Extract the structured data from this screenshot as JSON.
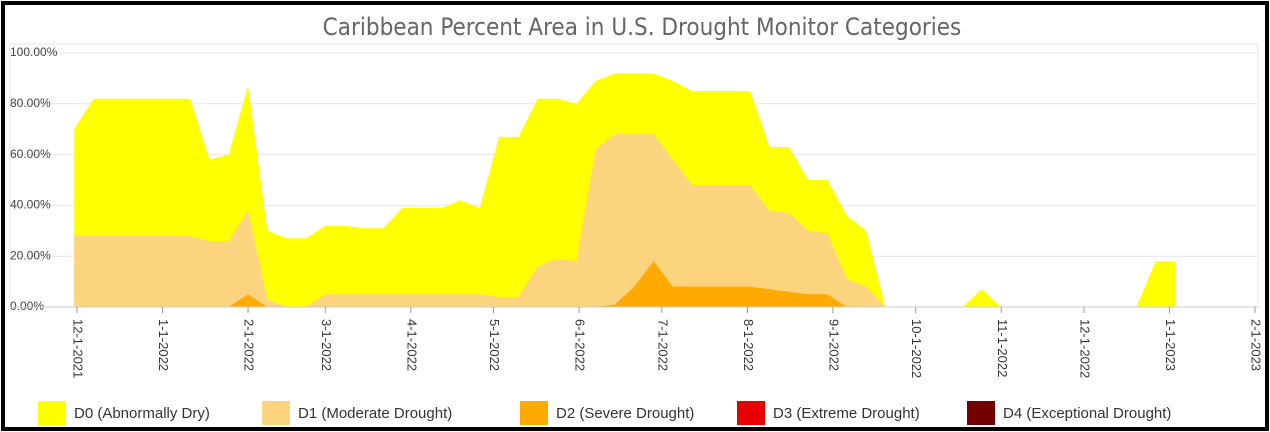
{
  "chart_data": {
    "type": "area",
    "title": "Caribbean Percent Area in U.S. Drought Monitor Categories",
    "x": [
      "11-30-2021",
      "12-7-2021",
      "12-14-2021",
      "12-21-2021",
      "12-28-2021",
      "1-4-2022",
      "1-11-2022",
      "1-18-2022",
      "1-25-2022",
      "2-1-2022",
      "2-8-2022",
      "2-15-2022",
      "2-22-2022",
      "3-1-2022",
      "3-8-2022",
      "3-15-2022",
      "3-22-2022",
      "3-29-2022",
      "4-5-2022",
      "4-12-2022",
      "4-19-2022",
      "4-26-2022",
      "5-3-2022",
      "5-10-2022",
      "5-17-2022",
      "5-24-2022",
      "5-31-2022",
      "6-7-2022",
      "6-14-2022",
      "6-21-2022",
      "6-28-2022",
      "7-5-2022",
      "7-12-2022",
      "7-19-2022",
      "7-26-2022",
      "8-2-2022",
      "8-9-2022",
      "8-16-2022",
      "8-23-2022",
      "8-30-2022",
      "9-6-2022",
      "9-13-2022",
      "9-20-2022",
      "9-27-2022",
      "10-4-2022",
      "10-11-2022",
      "10-18-2022",
      "10-25-2022",
      "11-1-2022",
      "11-8-2022",
      "11-15-2022",
      "11-22-2022",
      "11-29-2022",
      "12-6-2022",
      "12-13-2022",
      "12-20-2022",
      "12-27-2022",
      "1-3-2023"
    ],
    "series": [
      {
        "name": "D0 (Abnormally Dry)",
        "color": "#ffff00",
        "values": [
          70,
          82,
          82,
          82,
          82,
          82,
          82,
          58,
          60,
          87,
          30,
          27,
          27,
          32,
          32,
          31,
          31,
          39,
          39,
          39,
          42,
          39,
          67,
          67,
          82,
          82,
          80,
          89,
          92,
          92,
          92,
          89,
          85,
          85,
          85,
          85,
          63,
          63,
          50,
          50,
          36,
          30,
          0,
          0,
          0,
          0,
          0,
          7,
          0,
          0,
          0,
          0,
          0,
          0,
          0,
          0,
          18,
          18
        ]
      },
      {
        "name": "D1 (Moderate Drought)",
        "color": "#fcd37f",
        "values": [
          28,
          28,
          28,
          28,
          28,
          28,
          28,
          26,
          26,
          38,
          3,
          0,
          0,
          5,
          5,
          5,
          5,
          5,
          5,
          5,
          5,
          5,
          4,
          4,
          16,
          19,
          18,
          62,
          68,
          68,
          68,
          58,
          48,
          48,
          48,
          48,
          38,
          37,
          30,
          29,
          11,
          8,
          0,
          0,
          0,
          0,
          0,
          0,
          0,
          0,
          0,
          0,
          0,
          0,
          0,
          0,
          0,
          0
        ]
      },
      {
        "name": "D2 (Severe Drought)",
        "color": "#ffaa00",
        "values": [
          0,
          0,
          0,
          0,
          0,
          0,
          0,
          0,
          0,
          5,
          0,
          0,
          0,
          0,
          0,
          0,
          0,
          0,
          0,
          0,
          0,
          0,
          0,
          0,
          0,
          0,
          0,
          0,
          1,
          8,
          18,
          8,
          8,
          8,
          8,
          8,
          7,
          6,
          5,
          5,
          0,
          0,
          0,
          0,
          0,
          0,
          0,
          0,
          0,
          0,
          0,
          0,
          0,
          0,
          0,
          0,
          0,
          0
        ]
      },
      {
        "name": "D3 (Extreme Drought)",
        "color": "#e60000",
        "values": [
          0,
          0,
          0,
          0,
          0,
          0,
          0,
          0,
          0,
          0,
          0,
          0,
          0,
          0,
          0,
          0,
          0,
          0,
          0,
          0,
          0,
          0,
          0,
          0,
          0,
          0,
          0,
          0,
          0,
          0,
          0,
          0,
          0,
          0,
          0,
          0,
          0,
          0,
          0,
          0,
          0,
          0,
          0,
          0,
          0,
          0,
          0,
          0,
          0,
          0,
          0,
          0,
          0,
          0,
          0,
          0,
          0,
          0
        ]
      },
      {
        "name": "D4 (Exceptional Drought)",
        "color": "#730000",
        "values": [
          0,
          0,
          0,
          0,
          0,
          0,
          0,
          0,
          0,
          0,
          0,
          0,
          0,
          0,
          0,
          0,
          0,
          0,
          0,
          0,
          0,
          0,
          0,
          0,
          0,
          0,
          0,
          0,
          0,
          0,
          0,
          0,
          0,
          0,
          0,
          0,
          0,
          0,
          0,
          0,
          0,
          0,
          0,
          0,
          0,
          0,
          0,
          0,
          0,
          0,
          0,
          0,
          0,
          0,
          0,
          0,
          0,
          0
        ]
      }
    ],
    "xlim": [
      "12-1-2021",
      "2-1-2023"
    ],
    "xticks": [
      "12-1-2021",
      "1-1-2022",
      "2-1-2022",
      "3-1-2022",
      "4-1-2022",
      "5-1-2022",
      "6-1-2022",
      "7-1-2022",
      "8-1-2022",
      "9-1-2022",
      "10-1-2022",
      "11-1-2022",
      "12-1-2022",
      "1-1-2023",
      "2-1-2023"
    ],
    "ylim": [
      0,
      100
    ],
    "yticks": [
      {
        "value": 0,
        "label": "0.00%"
      },
      {
        "value": 20,
        "label": "20.00%"
      },
      {
        "value": 40,
        "label": "40.00%"
      },
      {
        "value": 60,
        "label": "60.00%"
      },
      {
        "value": 80,
        "label": "80.00%"
      },
      {
        "value": 100,
        "label": "100.00%"
      }
    ],
    "grid": true,
    "legend": "bottom"
  }
}
